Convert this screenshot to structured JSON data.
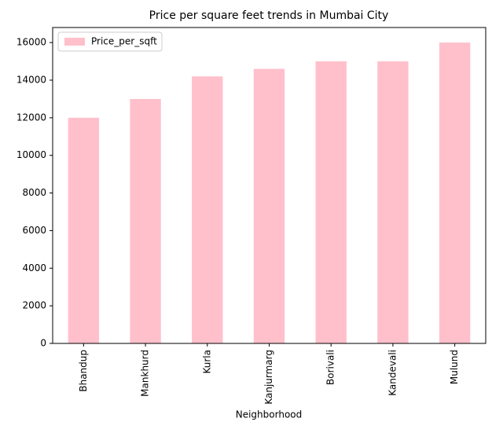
{
  "chart_data": {
    "type": "bar",
    "title": "Price per square feet trends in Mumbai City",
    "x_label": "Neighborhood",
    "categories": [
      "Bhandup",
      "Mankhurd",
      "Kurla",
      "Kanjurmarg",
      "Borivali",
      "Kandevali",
      "Mulund"
    ],
    "series": [
      {
        "name": "Price_per_sqft",
        "color": "#ffc0cb",
        "values": [
          12000,
          13000,
          14200,
          14600,
          15000,
          15000,
          16000
        ]
      }
    ],
    "ylim": [
      0,
      16800
    ],
    "yticks": [
      0,
      2000,
      4000,
      6000,
      8000,
      10000,
      12000,
      14000,
      16000
    ],
    "grid": false,
    "legend": "upper left"
  }
}
